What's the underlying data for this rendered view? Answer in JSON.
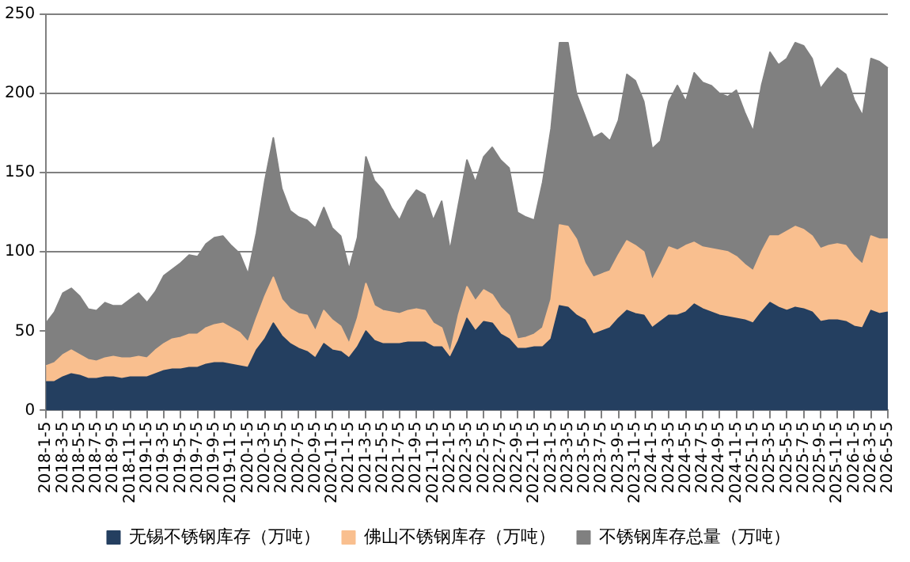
{
  "chart_data": {
    "type": "area",
    "stacked": true,
    "categories": [
      "2018-1-5",
      null,
      "2018-3-5",
      null,
      "2018-5-5",
      null,
      "2018-7-5",
      null,
      "2018-9-5",
      null,
      "2018-11-5",
      null,
      "2019-1-5",
      null,
      "2019-3-5",
      null,
      "2019-5-5",
      null,
      "2019-7-5",
      null,
      "2019-9-5",
      null,
      "2019-11-5",
      null,
      "2020-1-5",
      null,
      "2020-3-5",
      null,
      "2020-5-5",
      null,
      "2020-7-5",
      null,
      "2020-9-5",
      null,
      "2020-11-5",
      null,
      "2021-1-5",
      null,
      "2021-3-5",
      null,
      "2021-5-5",
      null,
      "2021-7-5",
      null,
      "2021-9-5",
      null,
      "2021-11-5",
      null,
      "2022-1-5",
      null,
      "2022-3-5",
      null,
      "2022-5-5",
      null,
      "2022-7-5",
      null,
      "2022-9-5",
      null,
      "2022-11-5",
      null,
      "2023-1-5",
      null,
      "2023-3-5",
      null,
      "2023-5-5",
      null,
      "2023-7-5",
      null,
      "2023-9-5",
      null,
      "2023-11-5",
      null,
      "2024-1-5",
      null,
      "2024-3-5",
      null,
      "2024-5-5",
      null,
      "2024-7-5",
      null,
      "2024-9-5",
      null,
      "2024-11-5",
      null,
      "2025-1-5",
      null,
      "2025-3-5",
      null,
      "2025-5-5",
      null,
      "2025-7-5",
      null,
      "2025-9-5",
      null,
      "2025-11-5",
      null,
      "2026-1-5",
      null,
      "2026-3-5",
      null,
      "2026-5-5"
    ],
    "series": [
      {
        "name": "无锡不锈钢库存（万吨）",
        "color": "#243f60",
        "values": [
          18,
          18,
          21,
          23,
          22,
          20,
          20,
          21,
          21,
          20,
          21,
          21,
          21,
          23,
          25,
          26,
          26,
          27,
          27,
          29,
          30,
          30,
          29,
          28,
          27,
          38,
          45,
          55,
          47,
          42,
          39,
          37,
          33,
          42,
          38,
          37,
          33,
          40,
          50,
          44,
          42,
          42,
          42,
          43,
          43,
          43,
          40,
          40,
          33,
          44,
          58,
          50,
          56,
          55,
          48,
          45,
          39,
          39,
          40,
          40,
          45,
          66,
          65,
          60,
          57,
          48,
          50,
          52,
          58,
          63,
          61,
          60,
          52,
          56,
          60,
          60,
          62,
          67,
          64,
          62,
          60,
          59,
          58,
          57,
          55,
          62,
          68,
          65,
          63,
          65,
          64,
          62,
          56,
          57,
          57,
          56,
          53,
          52,
          63,
          61,
          62
        ]
      },
      {
        "name": "佛山不锈钢库存（万吨）",
        "color": "#f9bf8f",
        "values": [
          10,
          12,
          14,
          15,
          13,
          12,
          11,
          12,
          13,
          13,
          12,
          13,
          12,
          15,
          17,
          19,
          20,
          21,
          21,
          23,
          24,
          25,
          23,
          21,
          16,
          20,
          27,
          29,
          23,
          22,
          22,
          23,
          17,
          21,
          19,
          16,
          9,
          18,
          30,
          22,
          21,
          20,
          19,
          20,
          21,
          20,
          15,
          12,
          3,
          16,
          20,
          19,
          20,
          18,
          17,
          15,
          6,
          7,
          8,
          12,
          25,
          51,
          51,
          48,
          36,
          36,
          36,
          36,
          40,
          44,
          43,
          40,
          30,
          36,
          43,
          41,
          42,
          39,
          39,
          40,
          41,
          41,
          39,
          35,
          33,
          38,
          42,
          45,
          50,
          51,
          50,
          48,
          46,
          47,
          48,
          48,
          44,
          40,
          47,
          47,
          46
        ]
      },
      {
        "name": "不锈钢库存总量（万吨）",
        "color": "#808080",
        "values": [
          27,
          32,
          39,
          39,
          37,
          32,
          32,
          35,
          32,
          33,
          37,
          40,
          35,
          37,
          43,
          44,
          47,
          50,
          49,
          53,
          55,
          55,
          52,
          50,
          43,
          54,
          73,
          88,
          70,
          62,
          61,
          60,
          65,
          65,
          58,
          57,
          47,
          51,
          80,
          79,
          76,
          66,
          59,
          69,
          75,
          73,
          65,
          80,
          65,
          70,
          80,
          75,
          84,
          93,
          93,
          93,
          80,
          76,
          72,
          92,
          108,
          115,
          116,
          92,
          93,
          88,
          89,
          82,
          85,
          105,
          104,
          95,
          83,
          78,
          92,
          104,
          91,
          107,
          104,
          103,
          99,
          98,
          105,
          96,
          88,
          105,
          116,
          108,
          109,
          116,
          116,
          112,
          101,
          106,
          111,
          108,
          99,
          94,
          112,
          112,
          108
        ]
      }
    ],
    "ylim": [
      0,
      250
    ],
    "yticks": [
      0,
      50,
      100,
      150,
      200,
      250
    ],
    "grid": "y",
    "legend": "bottom"
  }
}
